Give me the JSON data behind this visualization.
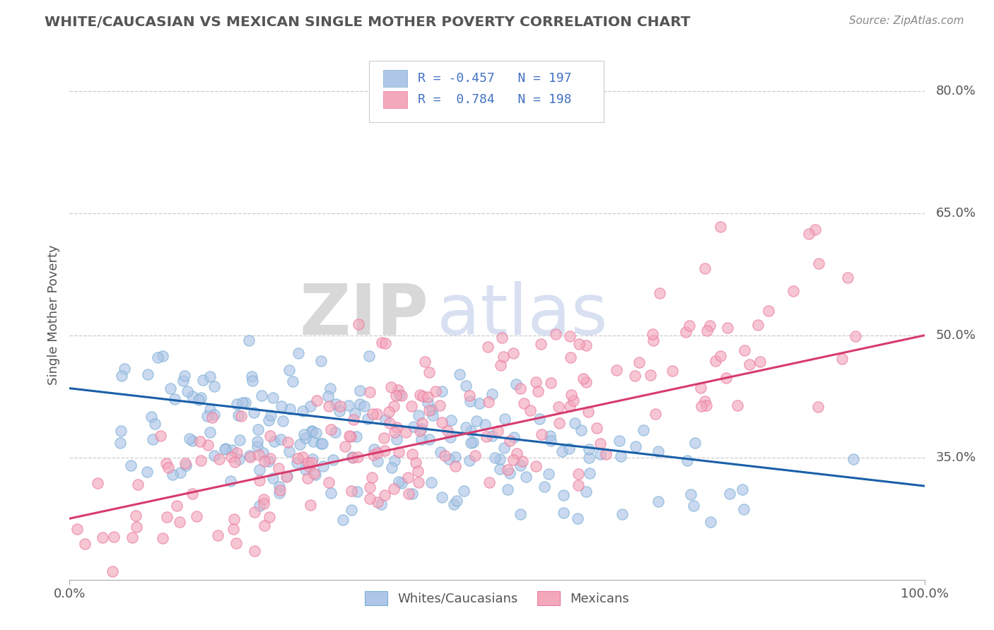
{
  "title": "WHITE/CAUCASIAN VS MEXICAN SINGLE MOTHER POVERTY CORRELATION CHART",
  "source": "Source: ZipAtlas.com",
  "ylabel": "Single Mother Poverty",
  "xlim": [
    0.0,
    1.0
  ],
  "ylim": [
    0.2,
    0.85
  ],
  "ytick_positions": [
    0.35,
    0.5,
    0.65,
    0.8
  ],
  "ytick_labels": [
    "35.0%",
    "50.0%",
    "65.0%",
    "80.0%"
  ],
  "xtick_labels": [
    "0.0%",
    "100.0%"
  ],
  "legend_labels": [
    "Whites/Caucasians",
    "Mexicans"
  ],
  "blue_fill_color": "#aec6e8",
  "blue_edge_color": "#7bafd4",
  "pink_fill_color": "#f4a8bc",
  "pink_edge_color": "#e87a9f",
  "blue_line_color": "#1a5fa8",
  "pink_line_color": "#d63b6e",
  "blue_r": -0.457,
  "blue_n": 197,
  "pink_r": 0.784,
  "pink_n": 198,
  "watermark_zip": "ZIP",
  "watermark_atlas": "atlas",
  "background_color": "#ffffff",
  "grid_color": "#cccccc",
  "title_color": "#555555",
  "legend_r_color": "#4472C4",
  "seed_blue": 42,
  "seed_pink": 77,
  "blue_line_y0": 0.435,
  "blue_line_y1": 0.315,
  "pink_line_y0": 0.275,
  "pink_line_y1": 0.5
}
